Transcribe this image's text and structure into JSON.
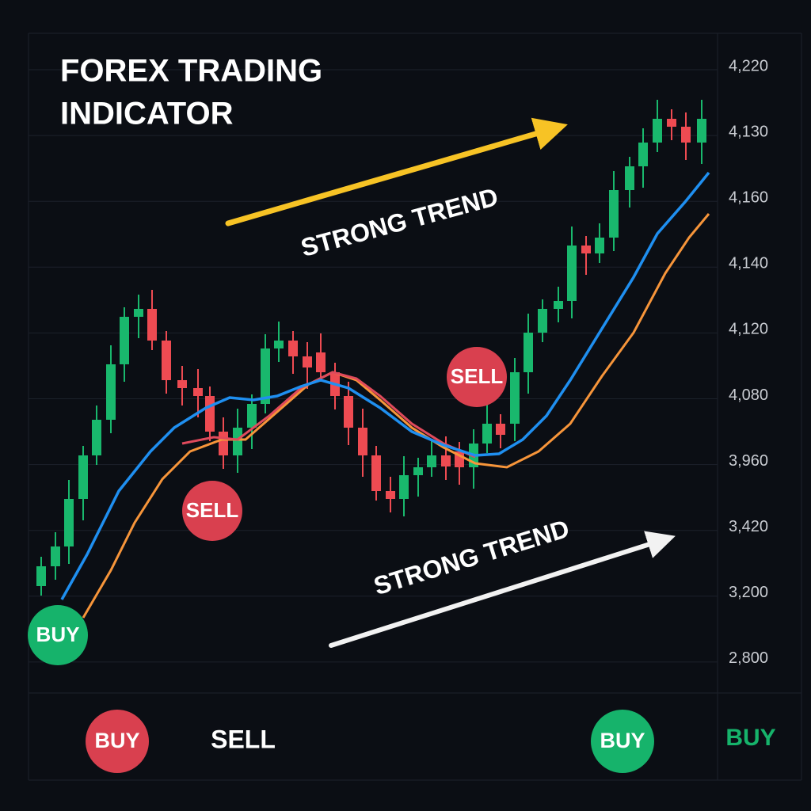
{
  "title_lines": [
    "FOREX TRADING",
    "INDICATOR"
  ],
  "axis_labels": [
    "4,220",
    "4,130",
    "4,160",
    "4,140",
    "4,120",
    "4,080",
    "3,960",
    "3,420",
    "3,200",
    "2,800"
  ],
  "trend_labels": [
    "STRONG TREND",
    "STRONG TREND"
  ],
  "chart_badges": [
    "BUY",
    "SELL",
    "SELL"
  ],
  "footer": {
    "badges": [
      "BUY",
      "BUY"
    ],
    "texts": [
      "SELL",
      "BUY"
    ]
  }
}
